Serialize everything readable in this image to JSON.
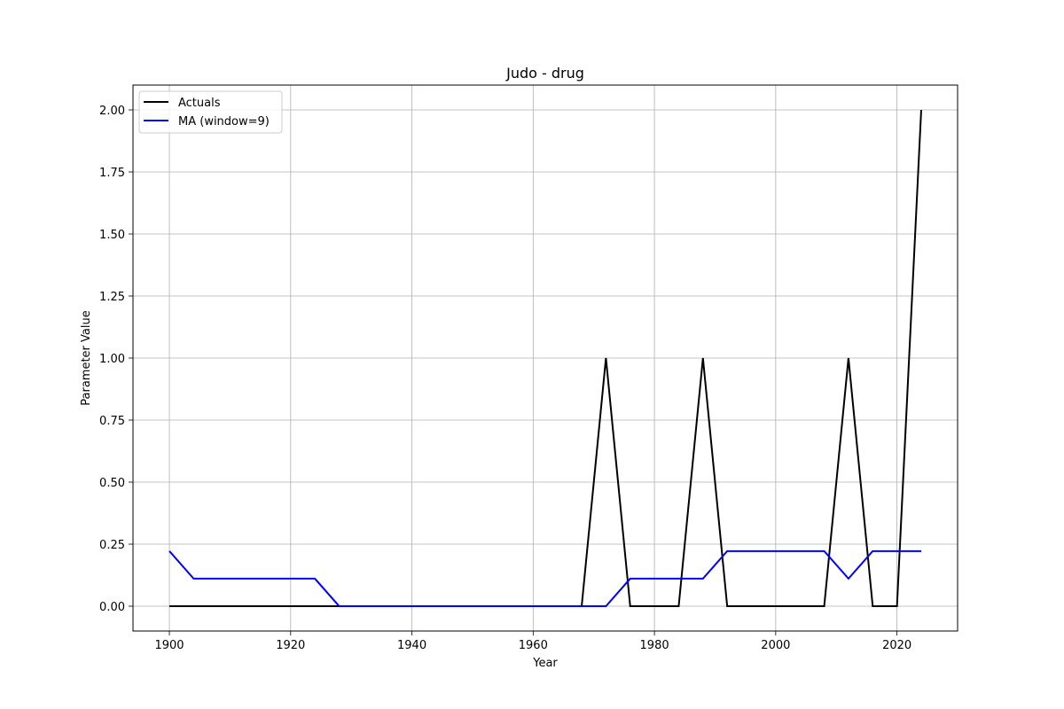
{
  "chart_data": {
    "type": "line",
    "title": "Judo - drug",
    "xlabel": "Year",
    "ylabel": "Parameter Value",
    "xlim": [
      1894,
      2030
    ],
    "ylim": [
      -0.1,
      2.1
    ],
    "xticks": [
      1900,
      1920,
      1940,
      1960,
      1980,
      2000,
      2020
    ],
    "xtick_labels": [
      "1900",
      "1920",
      "1940",
      "1960",
      "1980",
      "2000",
      "2020"
    ],
    "yticks": [
      0.0,
      0.25,
      0.5,
      0.75,
      1.0,
      1.25,
      1.5,
      1.75,
      2.0
    ],
    "ytick_labels": [
      "0.00",
      "0.25",
      "0.50",
      "0.75",
      "1.00",
      "1.25",
      "1.50",
      "1.75",
      "2.00"
    ],
    "grid": true,
    "legend_position": "top-left",
    "x": [
      1900,
      1904,
      1908,
      1912,
      1916,
      1920,
      1924,
      1928,
      1932,
      1936,
      1940,
      1944,
      1948,
      1952,
      1956,
      1960,
      1964,
      1968,
      1972,
      1976,
      1980,
      1984,
      1988,
      1992,
      1996,
      2000,
      2004,
      2008,
      2012,
      2016,
      2020,
      2024
    ],
    "series": [
      {
        "name": "Actuals",
        "color": "#000000",
        "values": [
          0,
          0,
          0,
          0,
          0,
          0,
          0,
          0,
          0,
          0,
          0,
          0,
          0,
          0,
          0,
          0,
          0,
          0,
          1,
          0,
          0,
          0,
          1,
          0,
          0,
          0,
          0,
          0,
          1,
          0,
          0,
          2
        ]
      },
      {
        "name": "MA (window=9)",
        "color": "#0000ff",
        "values": [
          0.222,
          0.111,
          0.111,
          0.111,
          0.111,
          0.111,
          0.111,
          0,
          0,
          0,
          0,
          0,
          0,
          0,
          0,
          0,
          0,
          0,
          0,
          0.111,
          0.111,
          0.111,
          0.111,
          0.222,
          0.222,
          0.222,
          0.222,
          0.222,
          0.111,
          0.222,
          0.222,
          0.222
        ]
      }
    ]
  }
}
